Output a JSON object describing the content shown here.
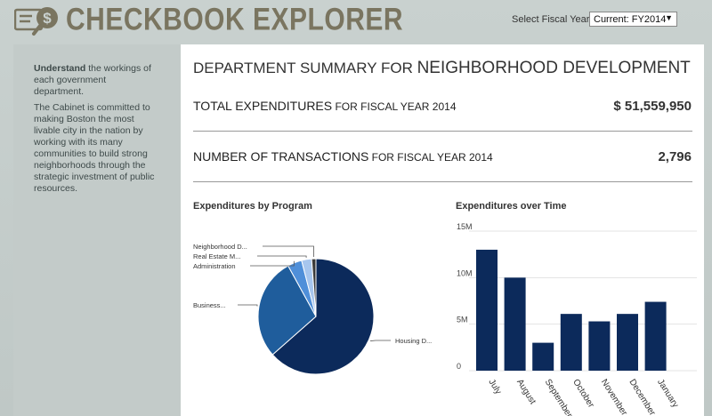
{
  "header": {
    "app_title": "CHECKBOOK EXPLORER",
    "fiscal_year_label": "Select Fiscal Year:",
    "fiscal_year_value": "Current: FY2014"
  },
  "sidebar": {
    "intro_bold": "Understand",
    "intro_rest": " the workings of each government department.",
    "description": "The Cabinet is committed to making Boston the most livable city in the nation by working with its many communities to build strong neighborhoods through the strategic investment of public resources."
  },
  "summary": {
    "title_prefix": "DEPARTMENT SUMMARY FOR ",
    "department": "NEIGHBORHOOD DEVELOPMENT",
    "total_label": "TOTAL EXPENDITURES",
    "total_sublabel": " FOR FISCAL YEAR 2014",
    "total_value": "$ 51,559,950",
    "count_label": "NUMBER OF TRANSACTIONS",
    "count_sublabel": " FOR FISCAL YEAR 2014",
    "count_value": "2,796"
  },
  "colors": {
    "dark_navy": "#0c2a5b",
    "mid_blue": "#1f5d9c",
    "light_blue": "#4f8fd9",
    "pale_blue": "#a7c6ee",
    "dark_gray": "#3b3b3b"
  },
  "chart_data": [
    {
      "type": "pie",
      "title": "Expenditures by Program",
      "slices": [
        {
          "label": "Housing D...",
          "value": 63.5
        },
        {
          "label": "Business...",
          "value": 28.5
        },
        {
          "label": "Administration",
          "value": 4.0
        },
        {
          "label": "Real Estate M...",
          "value": 2.8
        },
        {
          "label": "Neighborhood D...",
          "value": 1.2
        }
      ]
    },
    {
      "type": "bar",
      "title": "Expenditures over Time",
      "categories": [
        "July",
        "August",
        "September",
        "October",
        "November",
        "December",
        "January"
      ],
      "values": [
        13000000,
        10000000,
        3000000,
        6100000,
        5300000,
        6100000,
        7400000
      ],
      "ylim": [
        0,
        15000000
      ],
      "ytick_labels": [
        "0",
        "5M",
        "10M",
        "15M"
      ],
      "grid": true
    }
  ]
}
